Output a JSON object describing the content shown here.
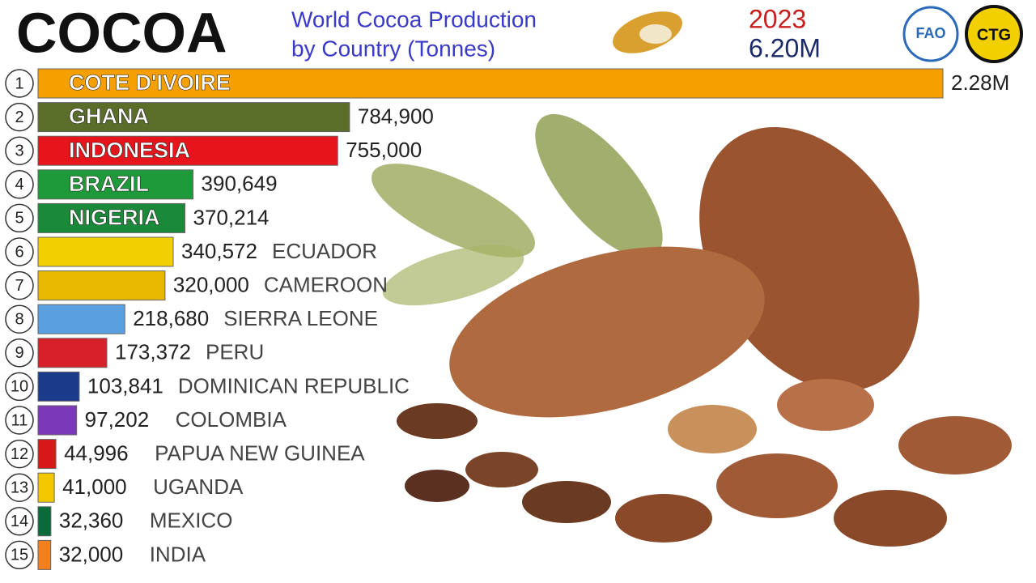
{
  "chart_data": {
    "type": "bar",
    "orientation": "horizontal",
    "title": "COCOA",
    "subtitle": [
      "World Cocoa Production",
      "by Country (Tonnes)"
    ],
    "year": "2023",
    "total": 6200000,
    "total_label": "6.20M",
    "logos": [
      "FAO",
      "CTG"
    ],
    "ranks": [
      1,
      2,
      3,
      4,
      5,
      6,
      7,
      8,
      9,
      10,
      11,
      12,
      13,
      14,
      15
    ],
    "categories": [
      "COTE D'IVOIRE",
      "GHANA",
      "INDONESIA",
      "BRAZIL",
      "NIGERIA",
      "ECUADOR",
      "CAMEROON",
      "SIERRA LEONE",
      "PERU",
      "DOMINICAN REPUBLIC",
      "COLOMBIA",
      "PAPUA NEW GUINEA",
      "UGANDA",
      "MEXICO",
      "INDIA"
    ],
    "values": [
      2280000,
      784900,
      755000,
      390649,
      370214,
      340572,
      320000,
      218680,
      173372,
      103841,
      97202,
      44996,
      41000,
      32360,
      32000
    ],
    "value_labels": [
      "2.28M",
      "784,900",
      "755,000",
      "390,649",
      "370,214",
      "340,572",
      "320,000",
      "218,680",
      "173,372",
      "103,841",
      "97,202",
      "44,996",
      "41,000",
      "32,360",
      "32,000"
    ],
    "colors": [
      "#f5a000",
      "#5a6e2a",
      "#e8141c",
      "#1e9a3a",
      "#1a8a3a",
      "#f2cf00",
      "#e8b800",
      "#5aa0e0",
      "#d8202a",
      "#1a3a8a",
      "#7a3ab8",
      "#d81818",
      "#f2c800",
      "#0a6a3a",
      "#f08020"
    ],
    "xlim": [
      0,
      2280000
    ]
  }
}
